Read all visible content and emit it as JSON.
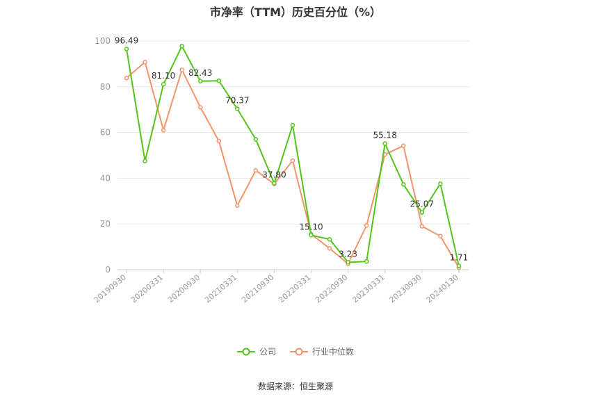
{
  "chart_data": {
    "type": "line",
    "title": "市净率（TTM）历史百分位（%）",
    "ylim": [
      0,
      100
    ],
    "y_ticks": [
      0,
      20,
      40,
      60,
      80,
      100
    ],
    "x_tick_labels": [
      "20190930",
      "20200331",
      "20200930",
      "20210331",
      "20210930",
      "20220331",
      "20220930",
      "20230331",
      "20230930",
      "20240130"
    ],
    "grid": true,
    "legend_position": "bottom",
    "series": [
      {
        "name": "公司",
        "color": "#52c41a",
        "values": [
          96.49,
          47.5,
          81.1,
          97.8,
          82.43,
          82.6,
          70.37,
          57.0,
          37.8,
          63.2,
          15.1,
          13.3,
          3.23,
          3.6,
          55.18,
          37.3,
          25.07,
          37.6,
          1.71
        ],
        "labels": {
          "0": "96.49",
          "2": "81.10",
          "4": "82.43",
          "6": "70.37",
          "8": "37.80",
          "10": "15.10",
          "12": "3.23",
          "14": "55.18",
          "16": "25.07",
          "18": "1.71"
        }
      },
      {
        "name": "行业中位数",
        "color": "#f4946a",
        "values": [
          83.8,
          90.8,
          61.0,
          87.4,
          71.0,
          56.3,
          28.0,
          43.4,
          37.5,
          47.7,
          15.6,
          9.3,
          2.6,
          19.3,
          50.4,
          54.2,
          19.0,
          14.7,
          0.9
        ]
      }
    ]
  },
  "source": "数据来源：恒生聚源"
}
